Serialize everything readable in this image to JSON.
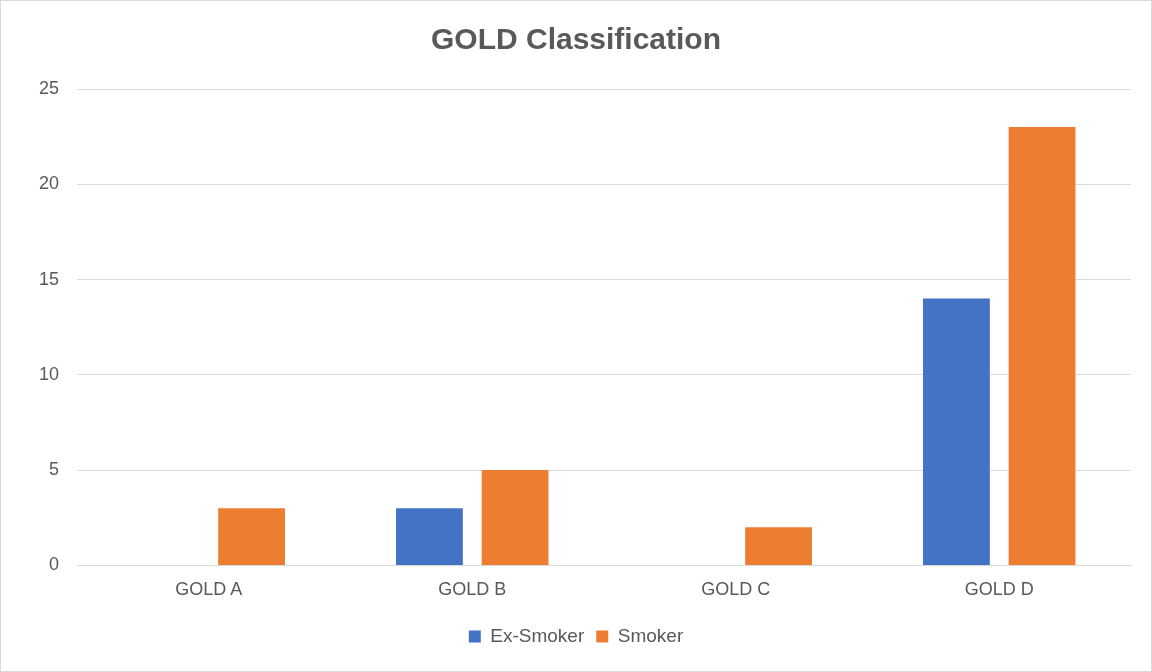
{
  "chart_data": {
    "type": "bar",
    "title": "GOLD Classification",
    "categories": [
      "GOLD A",
      "GOLD B",
      "GOLD C",
      "GOLD D"
    ],
    "series": [
      {
        "name": "Ex-Smoker",
        "color": "#4472c4",
        "values": [
          0,
          3,
          0,
          14
        ]
      },
      {
        "name": "Smoker",
        "color": "#ed7d31",
        "values": [
          3,
          5,
          2,
          23
        ]
      }
    ],
    "ylim": [
      0,
      25
    ],
    "yticks": [
      0,
      5,
      10,
      15,
      20,
      25
    ],
    "grid": "y",
    "legend": "bottom"
  }
}
